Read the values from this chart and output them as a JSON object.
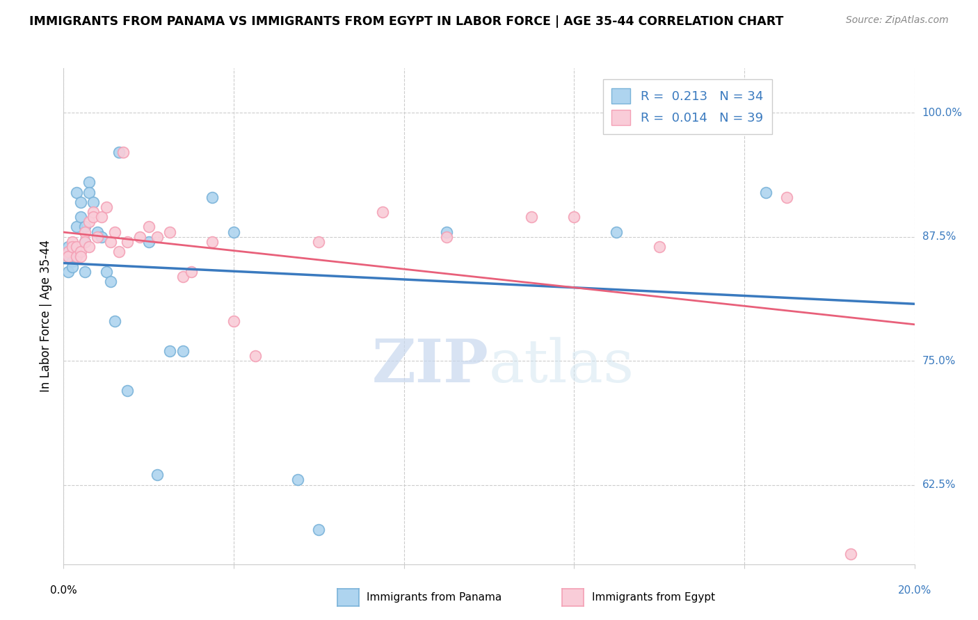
{
  "title": "IMMIGRANTS FROM PANAMA VS IMMIGRANTS FROM EGYPT IN LABOR FORCE | AGE 35-44 CORRELATION CHART",
  "source": "Source: ZipAtlas.com",
  "ylabel": "In Labor Force | Age 35-44",
  "yticks": [
    0.625,
    0.75,
    0.875,
    1.0
  ],
  "ytick_labels": [
    "62.5%",
    "75.0%",
    "87.5%",
    "100.0%"
  ],
  "xticks": [
    0.0,
    0.04,
    0.08,
    0.12,
    0.16,
    0.2
  ],
  "xlim": [
    0.0,
    0.2
  ],
  "ylim": [
    0.545,
    1.045
  ],
  "panama_line_color": "#3a7abf",
  "egypt_line_color": "#e8607a",
  "panama_scatter_color": "#aed4ef",
  "panama_scatter_edge": "#7ab3d9",
  "egypt_scatter_color": "#f9ccd8",
  "egypt_scatter_edge": "#f4a0b5",
  "panama_R": 0.213,
  "panama_N": 34,
  "egypt_R": 0.014,
  "egypt_N": 39,
  "panama_scatter_x": [
    0.001,
    0.001,
    0.001,
    0.002,
    0.002,
    0.002,
    0.003,
    0.003,
    0.004,
    0.004,
    0.005,
    0.005,
    0.005,
    0.006,
    0.006,
    0.007,
    0.008,
    0.009,
    0.01,
    0.011,
    0.012,
    0.013,
    0.015,
    0.02,
    0.022,
    0.025,
    0.028,
    0.035,
    0.04,
    0.055,
    0.06,
    0.09,
    0.13,
    0.165
  ],
  "panama_scatter_y": [
    0.855,
    0.865,
    0.84,
    0.86,
    0.85,
    0.845,
    0.885,
    0.92,
    0.91,
    0.895,
    0.87,
    0.885,
    0.84,
    0.93,
    0.92,
    0.91,
    0.88,
    0.875,
    0.84,
    0.83,
    0.79,
    0.96,
    0.72,
    0.87,
    0.635,
    0.76,
    0.76,
    0.915,
    0.88,
    0.63,
    0.58,
    0.88,
    0.88,
    0.92
  ],
  "egypt_scatter_x": [
    0.001,
    0.001,
    0.002,
    0.002,
    0.003,
    0.003,
    0.004,
    0.004,
    0.005,
    0.005,
    0.006,
    0.006,
    0.007,
    0.007,
    0.008,
    0.009,
    0.01,
    0.011,
    0.012,
    0.013,
    0.014,
    0.015,
    0.018,
    0.02,
    0.022,
    0.025,
    0.028,
    0.03,
    0.035,
    0.04,
    0.045,
    0.06,
    0.075,
    0.09,
    0.11,
    0.12,
    0.14,
    0.17,
    0.185
  ],
  "egypt_scatter_y": [
    0.86,
    0.855,
    0.87,
    0.865,
    0.865,
    0.855,
    0.86,
    0.855,
    0.88,
    0.87,
    0.865,
    0.89,
    0.9,
    0.895,
    0.875,
    0.895,
    0.905,
    0.87,
    0.88,
    0.86,
    0.96,
    0.87,
    0.875,
    0.885,
    0.875,
    0.88,
    0.835,
    0.84,
    0.87,
    0.79,
    0.755,
    0.87,
    0.9,
    0.875,
    0.895,
    0.895,
    0.865,
    0.915,
    0.555
  ],
  "watermark_zip": "ZIP",
  "watermark_atlas": "atlas",
  "grid_color": "#cccccc",
  "grid_style": "--",
  "axis_color": "#cccccc",
  "right_label_color": "#3a7abf",
  "bottom_label_color_left": "black",
  "bottom_label_color_right": "#3a7abf"
}
